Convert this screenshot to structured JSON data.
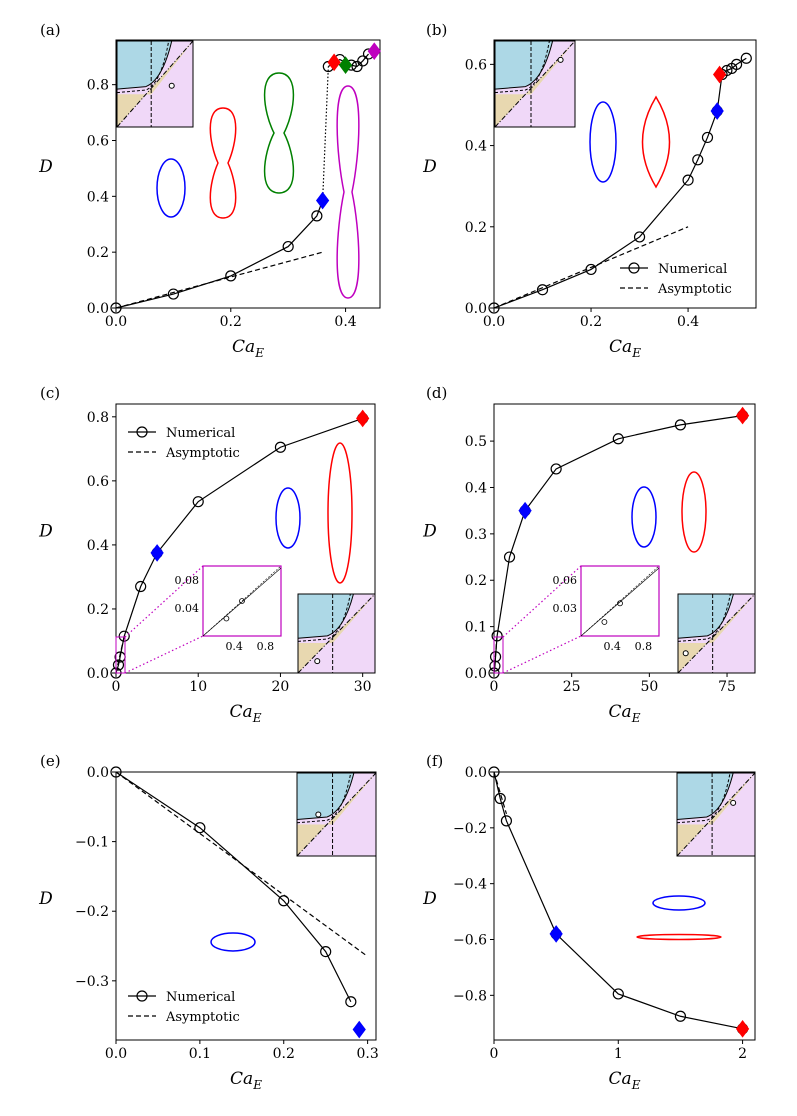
{
  "figure": {
    "type": "multi-panel line plots",
    "xlabel_text": "Ca",
    "xlabel_sub": "E",
    "ylabel": "D",
    "colors": {
      "blue": "#0000ff",
      "red": "#ff0000",
      "green": "#008000",
      "magenta": "#bf00bf",
      "inset_frame": "#bf00bf",
      "region_blue": "#add8e6",
      "region_tan": "#e8d8b0",
      "region_violet": "#f0d8f8"
    }
  },
  "chart_data": [
    {
      "panel": "(a)",
      "type": "line",
      "xlim": [
        0,
        0.46
      ],
      "ylim": [
        0,
        0.96
      ],
      "xticks": [
        0,
        0.2,
        0.4
      ],
      "xticklabels": [
        "0.0",
        "0.2",
        "0.4"
      ],
      "yticks": [
        0,
        0.2,
        0.4,
        0.6,
        0.8
      ],
      "yticklabels": [
        "0.0",
        "0.2",
        "0.4",
        "0.6",
        "0.8"
      ],
      "numerical": {
        "x": [
          0,
          0.1,
          0.2,
          0.3,
          0.35,
          0.37,
          0.39,
          0.41,
          0.42,
          0.43,
          0.44
        ],
        "y": [
          0,
          0.05,
          0.115,
          0.22,
          0.33,
          0.865,
          0.89,
          0.87,
          0.865,
          0.885,
          0.91
        ]
      },
      "numerical_link": "dotted",
      "asymptotic": {
        "x": [
          0,
          0.36
        ],
        "y": [
          0,
          0.2
        ]
      },
      "markers": [
        {
          "x": 0.36,
          "y": 0.385,
          "color": "blue"
        },
        {
          "x": 0.38,
          "y": 0.88,
          "color": "red"
        },
        {
          "x": 0.4,
          "y": 0.87,
          "color": "green"
        },
        {
          "x": 0.45,
          "y": 0.92,
          "color": "magenta"
        }
      ],
      "legend": null
    },
    {
      "panel": "(b)",
      "type": "line",
      "xlim": [
        0,
        0.54
      ],
      "ylim": [
        0,
        0.66
      ],
      "xticks": [
        0,
        0.2,
        0.4
      ],
      "xticklabels": [
        "0.0",
        "0.2",
        "0.4"
      ],
      "yticks": [
        0,
        0.2,
        0.4,
        0.6
      ],
      "yticklabels": [
        "0.0",
        "0.2",
        "0.4",
        "0.6"
      ],
      "numerical": {
        "x": [
          0,
          0.1,
          0.2,
          0.3,
          0.4,
          0.42,
          0.44,
          0.46,
          0.47,
          0.48,
          0.49,
          0.5,
          0.52
        ],
        "y": [
          0,
          0.045,
          0.095,
          0.175,
          0.315,
          0.365,
          0.42,
          0.485,
          0.575,
          0.585,
          0.59,
          0.6,
          0.615
        ]
      },
      "asymptotic": {
        "x": [
          0,
          0.4
        ],
        "y": [
          0,
          0.2
        ]
      },
      "markers": [
        {
          "x": 0.46,
          "y": 0.485,
          "color": "blue"
        },
        {
          "x": 0.465,
          "y": 0.575,
          "color": "red"
        }
      ],
      "legend": {
        "entries": [
          "Numerical",
          "Asymptotic"
        ]
      }
    },
    {
      "panel": "(c)",
      "type": "line",
      "xlim": [
        0,
        31.5
      ],
      "ylim": [
        0,
        0.84
      ],
      "xticks": [
        0,
        10,
        20,
        30
      ],
      "xticklabels": [
        "0",
        "10",
        "20",
        "30"
      ],
      "yticks": [
        0,
        0.2,
        0.4,
        0.6,
        0.8
      ],
      "yticklabels": [
        "0.0",
        "0.2",
        "0.4",
        "0.6",
        "0.8"
      ],
      "numerical": {
        "x": [
          0,
          0.3,
          0.5,
          1,
          3,
          5,
          10,
          20,
          30
        ],
        "y": [
          0,
          0.025,
          0.05,
          0.115,
          0.27,
          0.375,
          0.535,
          0.705,
          0.795
        ]
      },
      "asymptotic": {
        "x": [
          0,
          1
        ],
        "y": [
          0,
          0.115
        ]
      },
      "markers": [
        {
          "x": 5,
          "y": 0.375,
          "color": "blue"
        },
        {
          "x": 30,
          "y": 0.795,
          "color": "red"
        }
      ],
      "legend": {
        "entries": [
          "Numerical",
          "Asymptotic"
        ]
      },
      "zoom_inset": {
        "xticks": [
          0.4,
          0.8
        ],
        "xticklabels": [
          "0.4",
          "0.8"
        ],
        "yticks": [
          0.04,
          0.08
        ],
        "yticklabels": [
          "0.04",
          "0.08"
        ],
        "points": {
          "x": [
            0.3,
            0.5
          ],
          "y": [
            0.025,
            0.05
          ]
        }
      }
    },
    {
      "panel": "(d)",
      "type": "line",
      "xlim": [
        0,
        84
      ],
      "ylim": [
        0,
        0.58
      ],
      "xticks": [
        0,
        25,
        50,
        75
      ],
      "xticklabels": [
        "0",
        "25",
        "50",
        "75"
      ],
      "yticks": [
        0,
        0.1,
        0.2,
        0.3,
        0.4,
        0.5
      ],
      "yticklabels": [
        "0.0",
        "0.1",
        "0.2",
        "0.3",
        "0.4",
        "0.5"
      ],
      "numerical": {
        "x": [
          0,
          0.3,
          0.5,
          1,
          5,
          10,
          20,
          40,
          60,
          80
        ],
        "y": [
          0,
          0.015,
          0.035,
          0.08,
          0.25,
          0.35,
          0.44,
          0.505,
          0.535,
          0.555
        ]
      },
      "asymptotic": {
        "x": [
          0,
          1
        ],
        "y": [
          0,
          0.08
        ]
      },
      "markers": [
        {
          "x": 10,
          "y": 0.35,
          "color": "blue"
        },
        {
          "x": 80,
          "y": 0.555,
          "color": "red"
        }
      ],
      "legend": null,
      "zoom_inset": {
        "xticks": [
          0.4,
          0.8
        ],
        "xticklabels": [
          "0.4",
          "0.8"
        ],
        "yticks": [
          0.03,
          0.06
        ],
        "yticklabels": [
          "0.03",
          "0.06"
        ],
        "points": {
          "x": [
            0.3,
            0.5
          ],
          "y": [
            0.015,
            0.035
          ]
        }
      }
    },
    {
      "panel": "(e)",
      "type": "line",
      "xlim": [
        0,
        0.31
      ],
      "ylim": [
        -0.385,
        0
      ],
      "xticks": [
        0,
        0.1,
        0.2,
        0.3
      ],
      "xticklabels": [
        "0.0",
        "0.1",
        "0.2",
        "0.3"
      ],
      "yticks": [
        0,
        -0.1,
        -0.2,
        -0.3
      ],
      "yticklabels": [
        "0.0",
        "−0.1",
        "−0.2",
        "−0.3"
      ],
      "numerical": {
        "x": [
          0,
          0.1,
          0.2,
          0.25,
          0.28
        ],
        "y": [
          0,
          -0.08,
          -0.185,
          -0.258,
          -0.33
        ]
      },
      "asymptotic": {
        "x": [
          0,
          0.3
        ],
        "y": [
          0,
          -0.265
        ]
      },
      "markers": [
        {
          "x": 0.29,
          "y": -0.37,
          "color": "blue"
        }
      ],
      "legend": {
        "entries": [
          "Numerical",
          "Asymptotic"
        ]
      }
    },
    {
      "panel": "(f)",
      "type": "line",
      "xlim": [
        0,
        2.1
      ],
      "ylim": [
        -0.96,
        0
      ],
      "xticks": [
        0,
        1,
        2
      ],
      "xticklabels": [
        "0",
        "1",
        "2"
      ],
      "yticks": [
        0,
        -0.2,
        -0.4,
        -0.6,
        -0.8
      ],
      "yticklabels": [
        "0.0",
        "−0.2",
        "−0.4",
        "−0.6",
        "−0.8"
      ],
      "numerical": {
        "x": [
          0,
          0.05,
          0.1,
          0.5,
          1.0,
          1.5,
          2.0
        ],
        "y": [
          0,
          -0.095,
          -0.175,
          -0.58,
          -0.795,
          -0.875,
          -0.92
        ]
      },
      "asymptotic": {
        "x": [
          0,
          0.1
        ],
        "y": [
          0,
          -0.15
        ]
      },
      "markers": [
        {
          "x": 0.5,
          "y": -0.58,
          "color": "blue"
        },
        {
          "x": 2.0,
          "y": -0.92,
          "color": "red"
        }
      ],
      "legend": null
    }
  ]
}
